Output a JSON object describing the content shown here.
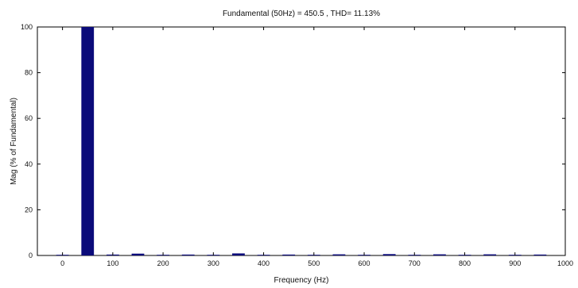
{
  "chart_data": {
    "type": "bar",
    "title": "Fundamental (50Hz) = 450.5 , THD= 11.13%",
    "xlabel": "Frequency (Hz)",
    "ylabel": "Mag (% of Fundamental)",
    "xlim": [
      -50,
      1000
    ],
    "ylim": [
      0,
      100
    ],
    "xticks": [
      0,
      100,
      200,
      300,
      400,
      500,
      600,
      700,
      800,
      900,
      1000
    ],
    "yticks": [
      0,
      20,
      40,
      60,
      80,
      100
    ],
    "grid": false,
    "bar_color": "#0b0b7a",
    "bar_width_hz": 25,
    "series": [
      {
        "x": [
          0,
          50,
          100,
          150,
          200,
          250,
          300,
          350,
          400,
          450,
          500,
          550,
          600,
          650,
          700,
          750,
          800,
          850,
          900,
          950
        ],
        "values": [
          0.3,
          100,
          0.4,
          0.8,
          0.3,
          0.4,
          0.3,
          0.9,
          0.3,
          0.4,
          0.3,
          0.5,
          0.3,
          0.6,
          0.3,
          0.5,
          0.3,
          0.5,
          0.3,
          0.4
        ]
      }
    ]
  }
}
